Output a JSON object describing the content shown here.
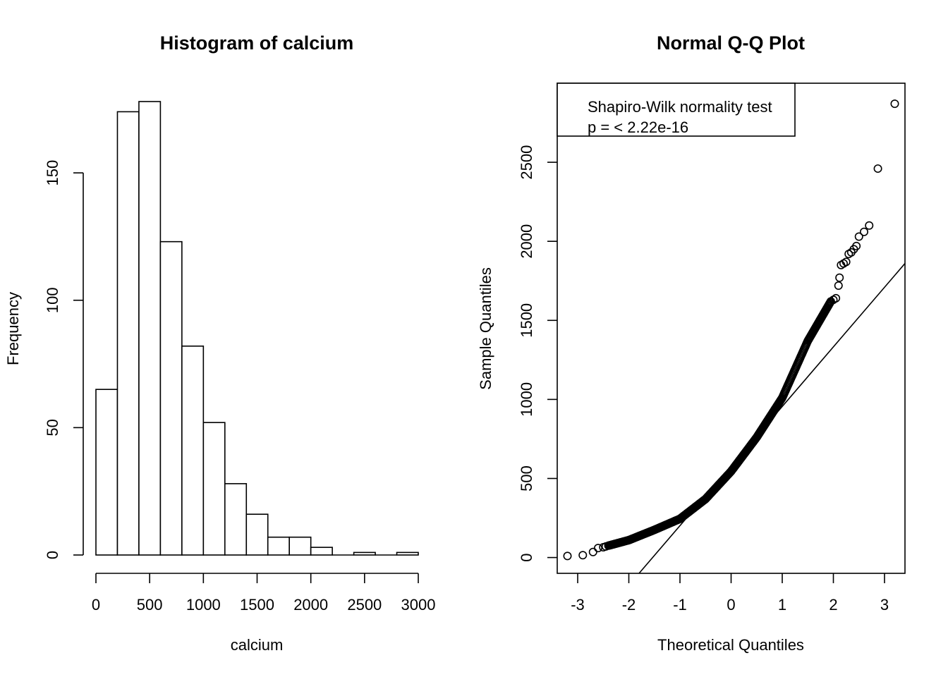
{
  "chart_data": [
    {
      "type": "bar",
      "title": "Histogram of  calcium",
      "xlabel": "calcium",
      "ylabel": "Frequency",
      "bin_edges": [
        0,
        200,
        400,
        600,
        800,
        1000,
        1200,
        1400,
        1600,
        1800,
        2000,
        2200,
        2400,
        2600,
        2800,
        3000
      ],
      "values": [
        65,
        174,
        178,
        123,
        82,
        52,
        28,
        16,
        7,
        7,
        3,
        0,
        1,
        0,
        1
      ],
      "x_ticks": [
        0,
        500,
        1000,
        1500,
        2000,
        2500,
        3000
      ],
      "x_tick_labels": [
        "0",
        "500",
        "1000",
        "1500",
        "2000",
        "2500",
        "3000"
      ],
      "y_ticks": [
        0,
        50,
        100,
        150
      ],
      "y_tick_labels": [
        "0",
        "50",
        "100",
        "150"
      ],
      "xlim": [
        0,
        3000
      ],
      "ylim": [
        0,
        178
      ],
      "grid": false
    },
    {
      "type": "scatter",
      "title": "Normal Q-Q Plot",
      "xlabel": "Theoretical Quantiles",
      "ylabel": "Sample Quantiles",
      "xlim": [
        -3.4,
        3.4
      ],
      "ylim": [
        -100,
        3000
      ],
      "x_ticks": [
        -3,
        -2,
        -1,
        0,
        1,
        2,
        3
      ],
      "x_tick_labels": [
        "-3",
        "-2",
        "-1",
        "0",
        "1",
        "2",
        "3"
      ],
      "y_ticks": [
        0,
        500,
        1000,
        1500,
        2000,
        2500
      ],
      "y_tick_labels": [
        "0",
        "500",
        "1000",
        "1500",
        "2000",
        "2500"
      ],
      "legend": {
        "position": "top-left",
        "lines": [
          "Shapiro-Wilk normality test",
          "p = < 2.22e-16"
        ]
      },
      "reference_line": {
        "x1": -1.8,
        "y1": -100,
        "x2": 3.4,
        "y2": 1860
      },
      "outlier_points": [
        [
          -3.2,
          10
        ],
        [
          -2.9,
          15
        ],
        [
          -2.7,
          35
        ],
        [
          -2.6,
          60
        ],
        [
          -2.5,
          65
        ],
        [
          -2.45,
          70
        ],
        [
          2.0,
          1630
        ],
        [
          2.05,
          1640
        ],
        [
          2.1,
          1720
        ],
        [
          2.12,
          1770
        ],
        [
          2.15,
          1850
        ],
        [
          2.2,
          1860
        ],
        [
          2.25,
          1870
        ],
        [
          2.3,
          1920
        ],
        [
          2.35,
          1930
        ],
        [
          2.4,
          1950
        ],
        [
          2.45,
          1970
        ],
        [
          2.5,
          2030
        ],
        [
          2.6,
          2060
        ],
        [
          2.7,
          2100
        ],
        [
          2.87,
          2460
        ],
        [
          3.2,
          2870
        ]
      ],
      "curve_knots": [
        [
          -2.4,
          75
        ],
        [
          -2.0,
          110
        ],
        [
          -1.5,
          175
        ],
        [
          -1.0,
          245
        ],
        [
          -0.5,
          370
        ],
        [
          0.0,
          545
        ],
        [
          0.5,
          760
        ],
        [
          1.0,
          1010
        ],
        [
          1.5,
          1370
        ],
        [
          1.95,
          1620
        ]
      ],
      "curve_point_count": 380,
      "grid": false
    }
  ]
}
